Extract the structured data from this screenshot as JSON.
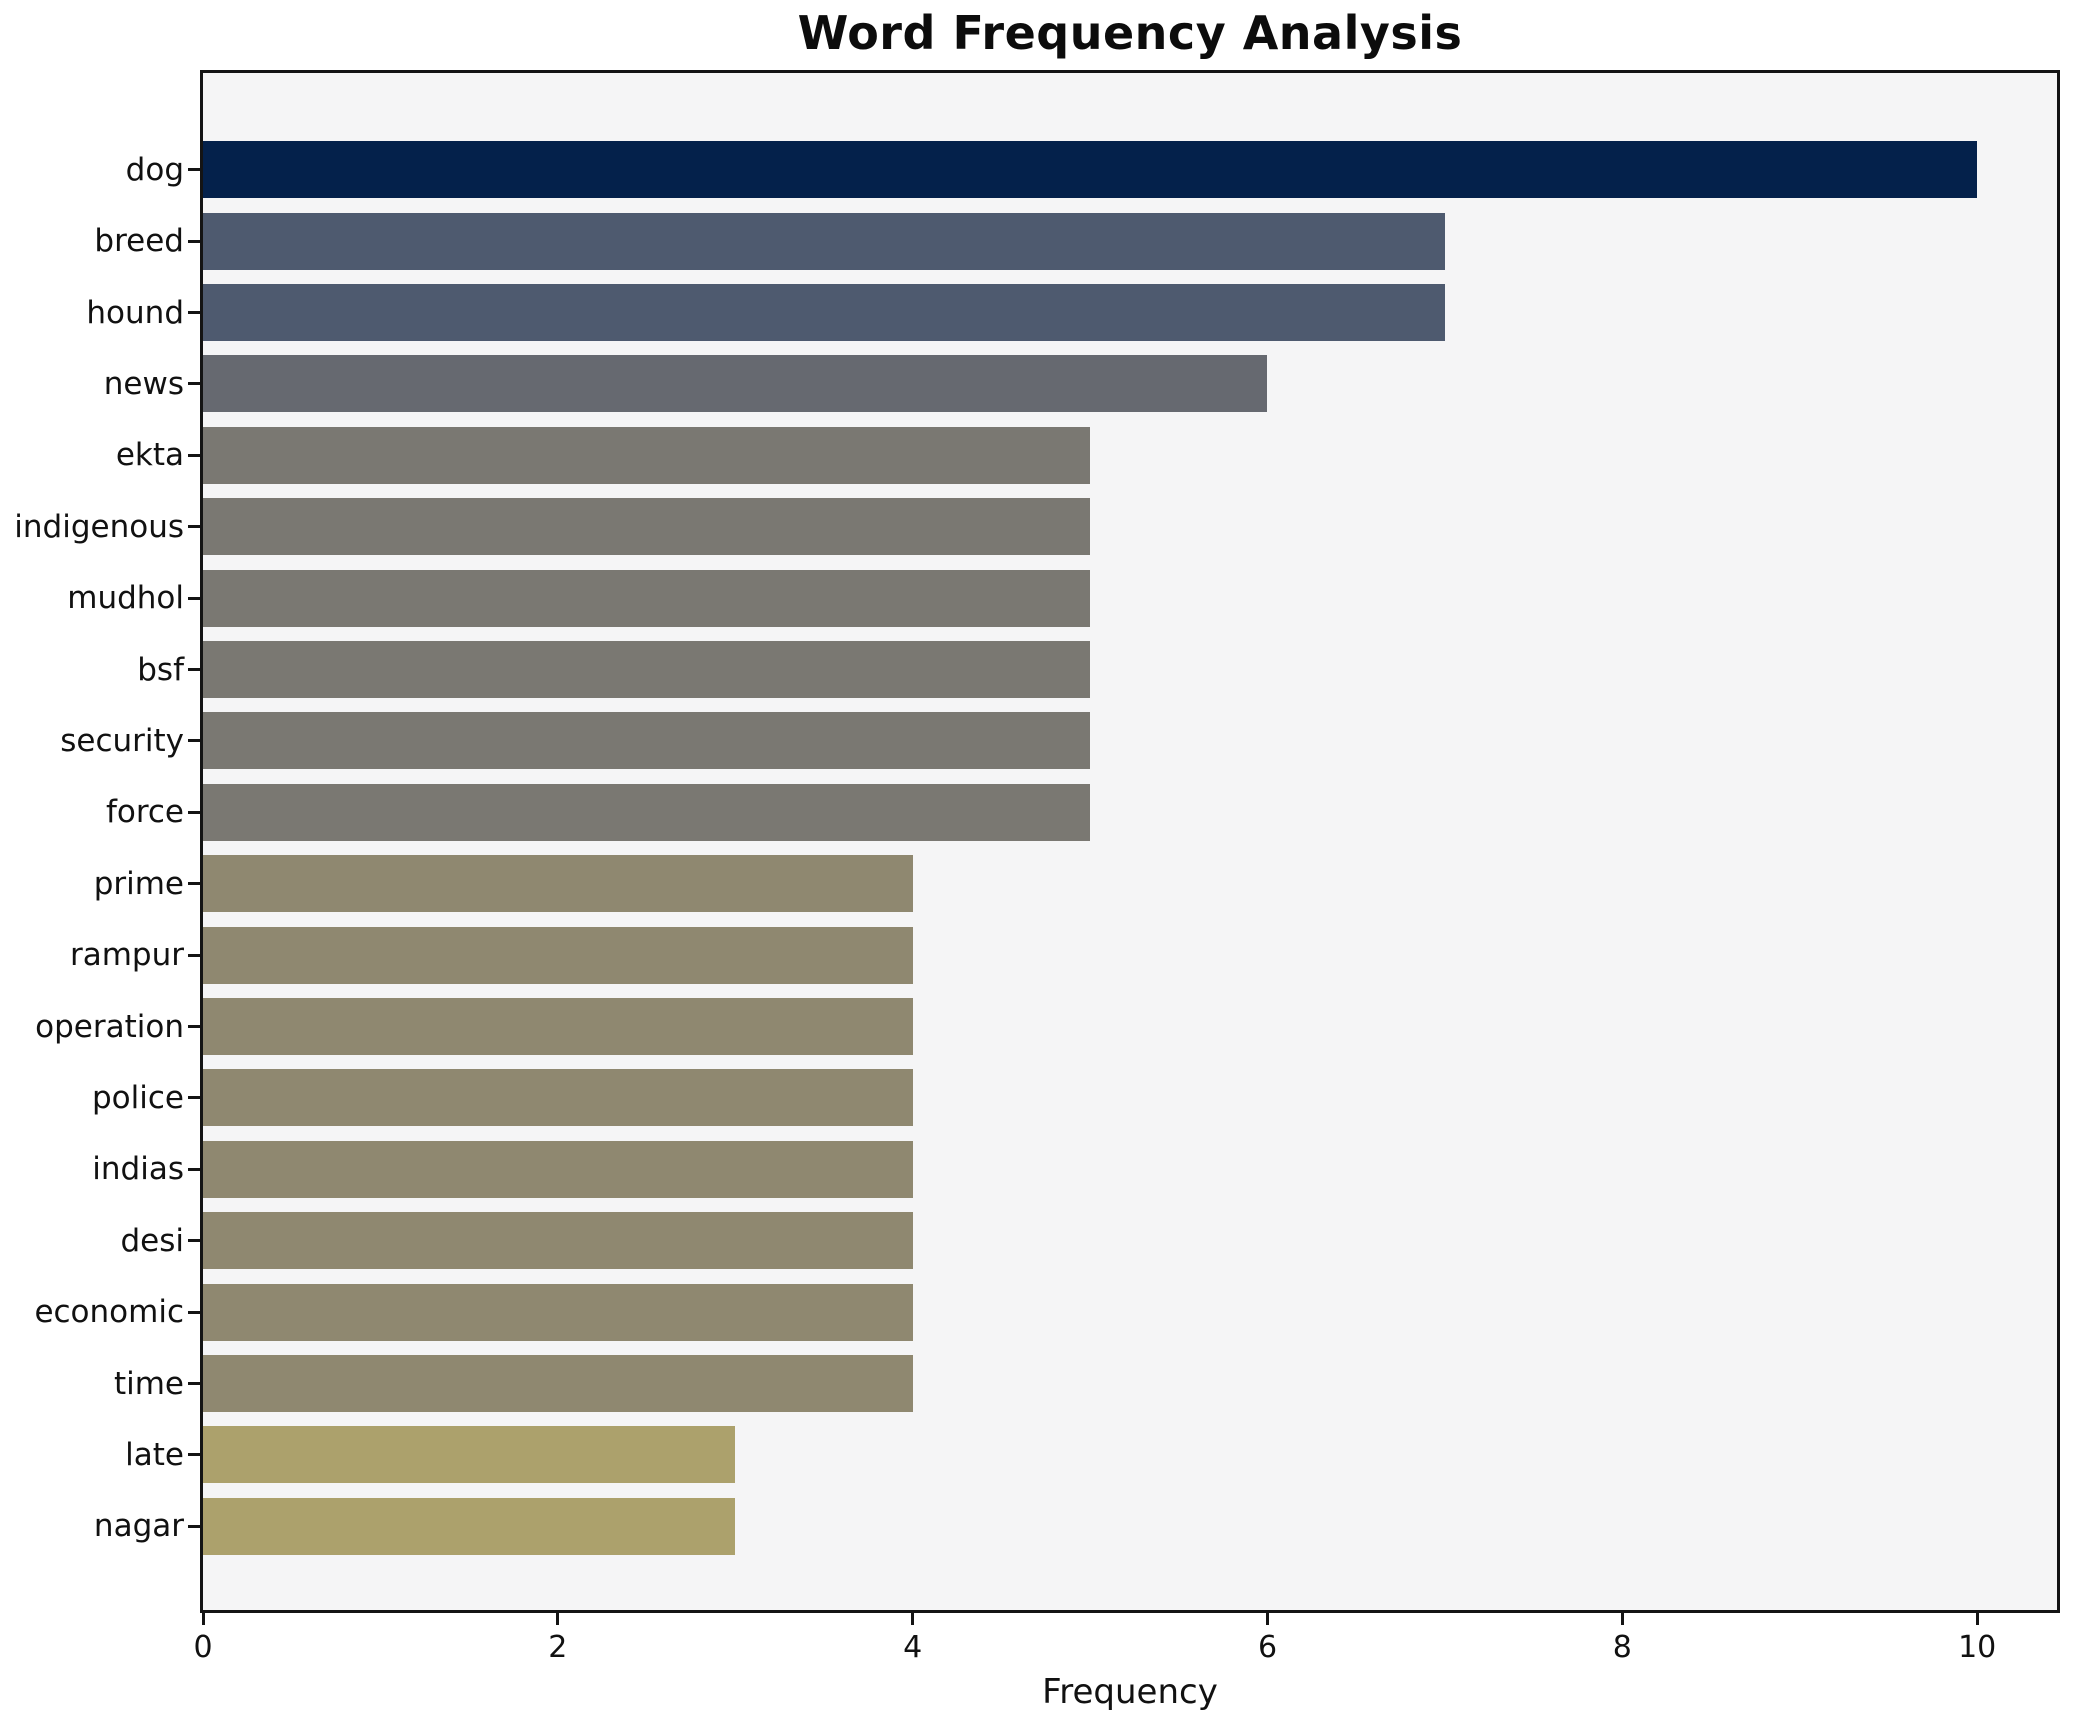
{
  "title": "Word Frequency Analysis",
  "chart_data": {
    "type": "bar",
    "orientation": "horizontal",
    "title": "Word Frequency Analysis",
    "xlabel": "Frequency",
    "ylabel": "",
    "categories": [
      "dog",
      "breed",
      "hound",
      "news",
      "ekta",
      "indigenous",
      "mudhol",
      "bsf",
      "security",
      "force",
      "prime",
      "rampur",
      "operation",
      "police",
      "indias",
      "desi",
      "economic",
      "time",
      "late",
      "nagar"
    ],
    "values": [
      10,
      7,
      7,
      6,
      5,
      5,
      5,
      5,
      5,
      5,
      4,
      4,
      4,
      4,
      4,
      4,
      4,
      4,
      3,
      3
    ],
    "bar_colors": [
      "#04214b",
      "#4e5a6f",
      "#4e5a6f",
      "#666970",
      "#7a7872",
      "#7a7872",
      "#7a7872",
      "#7a7872",
      "#7a7872",
      "#7a7872",
      "#8f8870",
      "#8f8870",
      "#8f8870",
      "#8f8870",
      "#8f8870",
      "#8f8870",
      "#8f8870",
      "#8f8870",
      "#aca16c",
      "#aca16c"
    ],
    "x_ticks": [
      0,
      2,
      4,
      6,
      8,
      10
    ],
    "x_tick_labels": [
      "0",
      "2",
      "4",
      "6",
      "8",
      "10"
    ],
    "xlim": [
      0,
      10.45
    ],
    "grid": false,
    "legend": false,
    "plot_bg": "#f5f5f6",
    "figure_bg": "#ffffff",
    "spine_color": "#141414",
    "bar_max_color": "#04214b",
    "bar_min_color": "#aca16c"
  }
}
